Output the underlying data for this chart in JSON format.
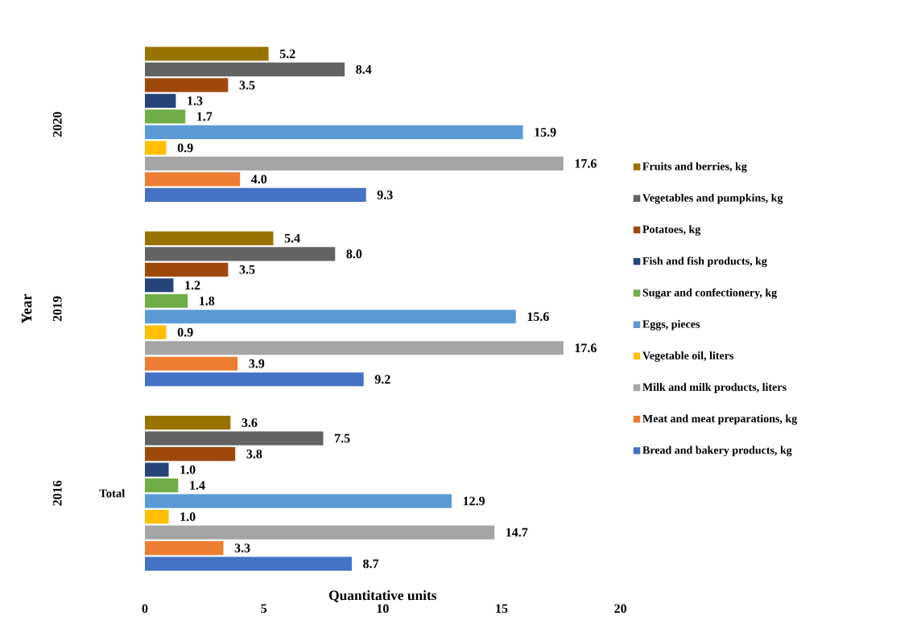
{
  "chart_data": {
    "type": "bar",
    "orientation": "horizontal",
    "xlabel": "Quantitative units",
    "ylabel": "Year",
    "categories": [
      "2020",
      "2019",
      "2016"
    ],
    "annotations": [
      "Total"
    ],
    "xlim": [
      0,
      20
    ],
    "xticks": [
      0,
      5,
      10,
      15,
      20
    ],
    "legend": "right",
    "grid": false,
    "series": [
      {
        "name": "Fruits and berries, kg",
        "color": "#997300",
        "values": [
          5.2,
          5.4,
          3.6
        ],
        "value_labels": [
          "5.2",
          "5.4",
          "3.6"
        ]
      },
      {
        "name": "Vegetables and pumpkins, kg",
        "color": "#636363",
        "values": [
          8.4,
          8.0,
          7.5
        ],
        "value_labels": [
          "8.4",
          "8.0",
          "7.5"
        ]
      },
      {
        "name": "Potatoes, kg",
        "color": "#9e480e",
        "values": [
          3.5,
          3.5,
          3.8
        ],
        "value_labels": [
          "3.5",
          "3.5",
          "3.8"
        ]
      },
      {
        "name": "Fish and fish products, kg",
        "color": "#264478",
        "values": [
          1.3,
          1.2,
          1.0
        ],
        "value_labels": [
          "1.3",
          "1.2",
          "1.0"
        ]
      },
      {
        "name": "Sugar and confectionery, kg",
        "color": "#70ad47",
        "values": [
          1.7,
          1.8,
          1.4
        ],
        "value_labels": [
          "1.7",
          "1.8",
          "1.4"
        ]
      },
      {
        "name": "Eggs, pieces",
        "color": "#5b9bd5",
        "values": [
          15.9,
          15.6,
          12.9
        ],
        "value_labels": [
          "15.9",
          "15.6",
          "12.9"
        ]
      },
      {
        "name": "Vegetable oil, liters",
        "color": "#ffc000",
        "values": [
          0.9,
          0.9,
          1.0
        ],
        "value_labels": [
          "0.9",
          "0.9",
          "1.0"
        ]
      },
      {
        "name": "Milk and milk products, liters",
        "color": "#a5a5a5",
        "values": [
          17.6,
          17.6,
          14.7
        ],
        "value_labels": [
          "17.6",
          "17.6",
          "14.7"
        ]
      },
      {
        "name": "Meat and meat preparations, kg",
        "color": "#ed7d31",
        "values": [
          4.0,
          3.9,
          3.3
        ],
        "value_labels": [
          "4.0",
          "3.9",
          "3.3"
        ]
      },
      {
        "name": "Bread and bakery products, kg",
        "color": "#4472c4",
        "values": [
          9.3,
          9.2,
          8.7
        ],
        "value_labels": [
          "9.3",
          "9.2",
          "8.7"
        ]
      }
    ]
  }
}
